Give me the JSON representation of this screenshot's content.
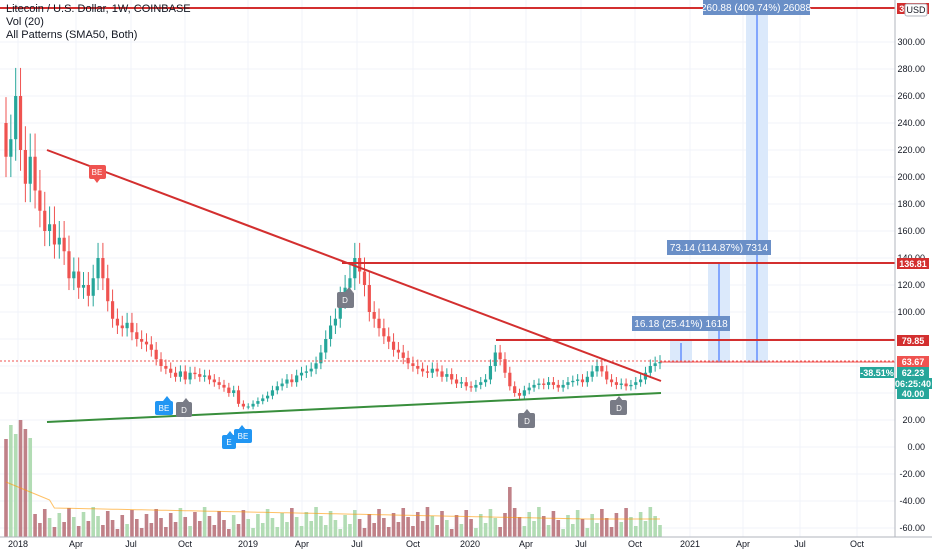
{
  "legend": {
    "symbol": "Litecoin / U.S. Dollar, 1W, COINBASE",
    "volume": "Vol (20)",
    "patterns": "All Patterns (SMA50, Both)"
  },
  "currency_button": "USD",
  "price_axis": [
    "300.00",
    "280.00",
    "260.00",
    "240.00",
    "220.00",
    "200.00",
    "180.00",
    "160.00",
    "140.00",
    "120.00",
    "100.00",
    "80.00",
    "60.00",
    "40.00",
    "20.00",
    "0.00",
    "-20.00",
    "-40.00",
    "-60.00"
  ],
  "date_axis": [
    "2018",
    "Apr",
    "Jul",
    "Oct",
    "2019",
    "Apr",
    "Jul",
    "Oct",
    "2020",
    "Apr",
    "Jul",
    "Oct",
    "2021",
    "Apr",
    "Jul",
    "Oct"
  ],
  "price_tags": {
    "top": "320.00",
    "r1": "136.81",
    "r2": "79.85",
    "current": "63.67",
    "pct": "-38.51%",
    "last": "62.23",
    "timer": "06:25:40",
    "p40": "40.00"
  },
  "measure_boxes": [
    {
      "text": "260.88 (409.74%) 26088"
    },
    {
      "text": "73.14 (114.87%) 7314"
    },
    {
      "text": "16.18 (25.41%) 1618"
    }
  ],
  "pattern_pins": [
    {
      "label": "BE",
      "color": "#ef5350"
    },
    {
      "label": "D",
      "color": "#787b86"
    },
    {
      "label": "BE",
      "color": "#2196f3"
    },
    {
      "label": "D",
      "color": "#787b86"
    },
    {
      "label": "E",
      "color": "#2196f3"
    },
    {
      "label": "BE",
      "color": "#2196f3"
    },
    {
      "label": "D",
      "color": "#787b86"
    },
    {
      "label": "D",
      "color": "#787b86"
    }
  ],
  "colors": {
    "up": "#26a69a",
    "down": "#ef5350",
    "resistance": "#d32f2f",
    "trend_down": "#d32f2f",
    "trend_up": "#388e3c",
    "measure_fill": "#dbe9fb",
    "measure_box": "#6a8fc7"
  },
  "price_series": [
    215,
    228,
    260,
    220,
    195,
    215,
    190,
    175,
    160,
    165,
    150,
    155,
    145,
    125,
    130,
    118,
    120,
    112,
    125,
    140,
    125,
    108,
    95,
    90,
    88,
    92,
    85,
    80,
    78,
    76,
    72,
    65,
    60,
    58,
    55,
    52,
    56,
    50,
    55,
    54,
    52,
    53,
    50,
    48,
    46,
    44,
    40,
    42,
    32,
    30,
    30,
    32,
    34,
    36,
    38,
    42,
    45,
    47,
    50,
    48,
    53,
    55,
    56,
    58,
    62,
    70,
    80,
    90,
    95,
    110,
    118,
    125,
    140,
    130,
    120,
    100,
    95,
    88,
    82,
    78,
    72,
    70,
    66,
    62,
    60,
    58,
    56,
    55,
    58,
    56,
    52,
    54,
    50,
    47,
    48,
    45,
    44,
    46,
    48,
    50,
    60,
    70,
    65,
    55,
    45,
    40,
    38,
    42,
    44,
    46,
    47,
    46,
    48,
    46,
    44,
    46,
    48,
    49,
    50,
    48,
    52,
    56,
    60,
    56,
    50,
    48,
    46,
    47,
    45,
    46,
    48,
    50,
    55,
    60,
    62,
    63
  ]
}
